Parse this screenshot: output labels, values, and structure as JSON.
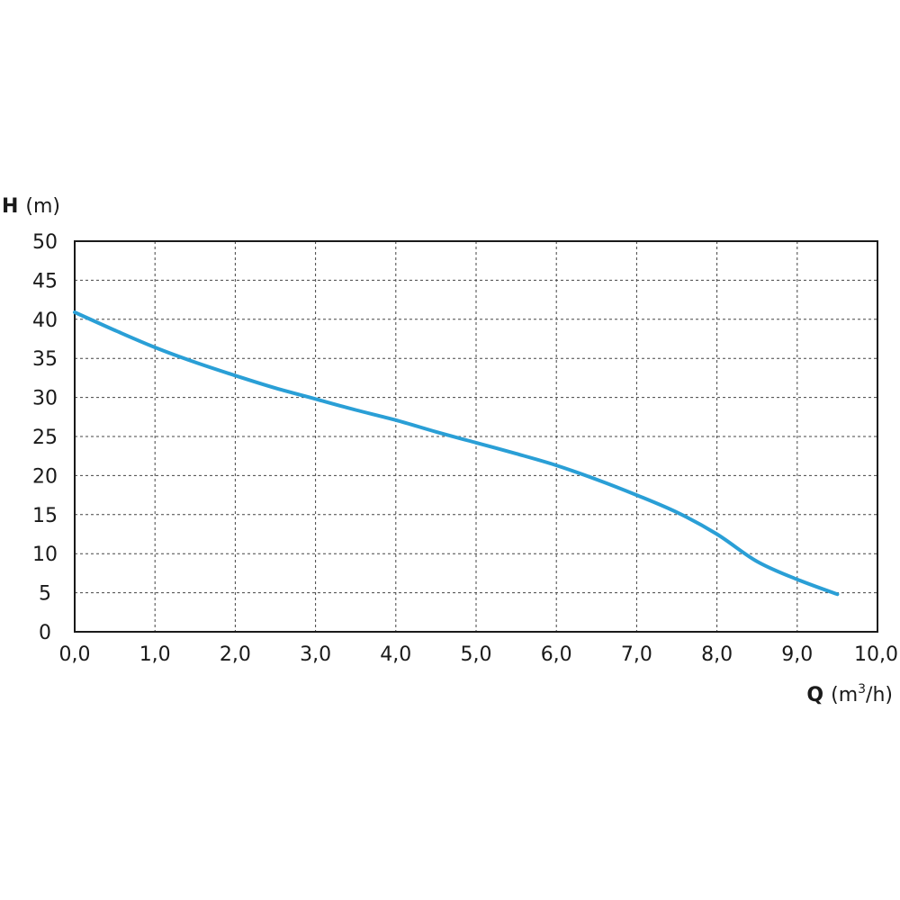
{
  "chart_data": {
    "type": "line",
    "title": "",
    "ylabel": {
      "symbol": "H",
      "unit": "(m)"
    },
    "xlabel": {
      "symbol": "Q",
      "unit_pre": "(m",
      "unit_sup": "3",
      "unit_post": "/h)"
    },
    "xlim": [
      0,
      10
    ],
    "ylim": [
      0,
      50
    ],
    "x_ticks": [
      "0,0",
      "1,0",
      "2,0",
      "3,0",
      "4,0",
      "5,0",
      "6,0",
      "7,0",
      "8,0",
      "9,0",
      "10,0"
    ],
    "y_ticks": [
      "0",
      "5",
      "10",
      "15",
      "20",
      "25",
      "30",
      "35",
      "40",
      "45",
      "50"
    ],
    "grid": true,
    "series": [
      {
        "color": "#2a9fd6",
        "x": [
          0.0,
          0.5,
          1.0,
          1.5,
          2.0,
          2.5,
          3.0,
          3.5,
          4.0,
          4.5,
          5.0,
          5.5,
          6.0,
          6.5,
          7.0,
          7.5,
          8.0,
          8.5,
          9.0,
          9.5
        ],
        "y": [
          40.9,
          38.6,
          36.4,
          34.5,
          32.8,
          31.2,
          29.8,
          28.4,
          27.1,
          25.6,
          24.2,
          22.8,
          21.3,
          19.5,
          17.5,
          15.3,
          12.5,
          9.0,
          6.7,
          4.8
        ]
      }
    ]
  }
}
